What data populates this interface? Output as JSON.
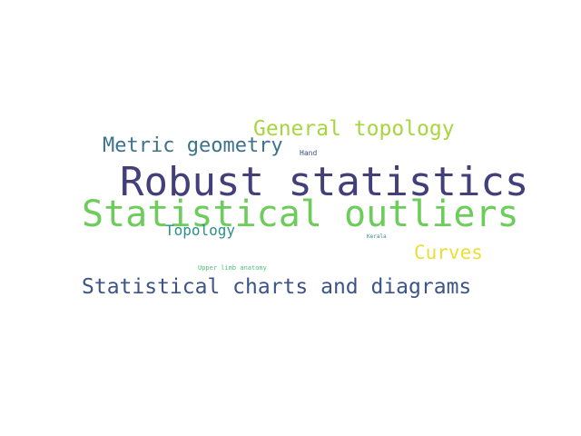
{
  "words": [
    {
      "text": "Robust statistics",
      "color": "#433f7a"
    },
    {
      "text": "Statistical outliers",
      "color": "#6ccd5a"
    },
    {
      "text": "General topology",
      "color": "#a8d63e"
    },
    {
      "text": "Metric geometry",
      "color": "#3c728c"
    },
    {
      "text": "Statistical charts and diagrams",
      "color": "#3d5488"
    },
    {
      "text": "Curves",
      "color": "#eadf34"
    },
    {
      "text": "Topology",
      "color": "#2b8f8c"
    },
    {
      "text": "Hand",
      "color": "#3f4a86"
    },
    {
      "text": "Upper limb anatomy",
      "color": "#4fc07a"
    },
    {
      "text": "Kerala",
      "color": "#3a8a8c"
    }
  ]
}
